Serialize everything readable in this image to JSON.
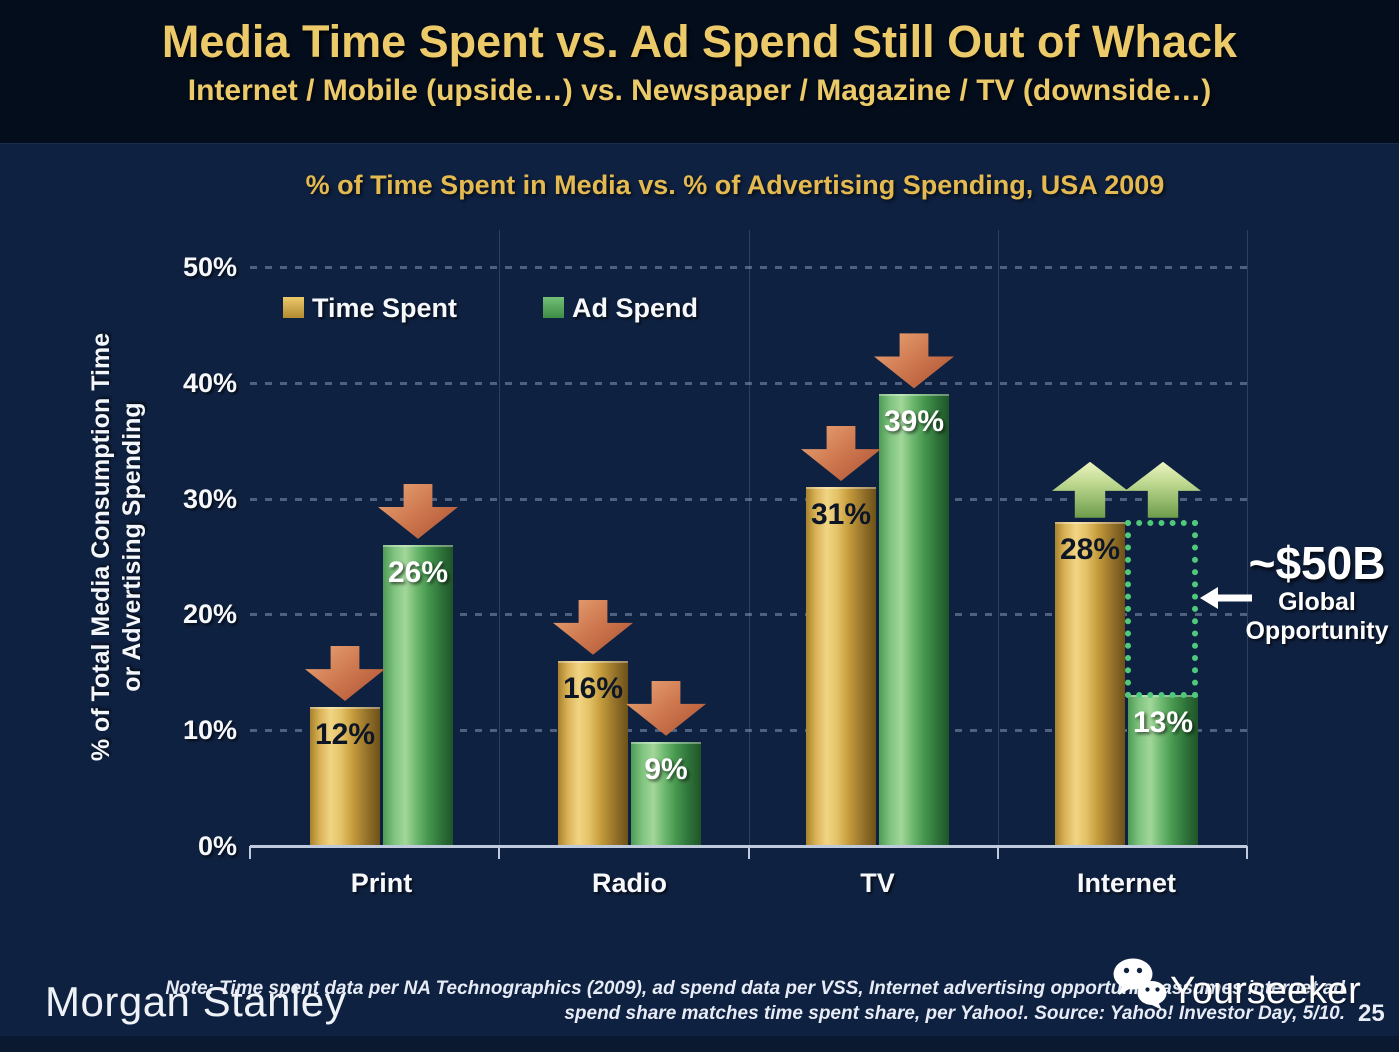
{
  "slide": {
    "title": "Media Time Spent vs. Ad Spend Still Out of Whack",
    "subtitle": "Internet / Mobile (upside…) vs. Newspaper / Magazine / TV (downside…)",
    "page_number": "25"
  },
  "chart_data": {
    "type": "bar",
    "title": "% of Time Spent in Media vs. % of Advertising Spending, USA 2009",
    "categories": [
      "Print",
      "Radio",
      "TV",
      "Internet"
    ],
    "series": [
      {
        "name": "Time Spent",
        "color": "#d9b04c",
        "values": [
          12,
          16,
          31,
          28
        ]
      },
      {
        "name": "Ad Spend",
        "color": "#54a95c",
        "values": [
          26,
          9,
          39,
          13
        ]
      }
    ],
    "value_suffix": "%",
    "trend_arrows": [
      "down",
      "down",
      "down",
      "up"
    ],
    "ylabel_line1": "% of Total Media Consumption Time",
    "ylabel_line2": "or Advertising Spending",
    "ylim": [
      0,
      50
    ],
    "yticks": [
      "0%",
      "10%",
      "20%",
      "30%",
      "40%",
      "50%"
    ],
    "grid": "dotted-horizontal",
    "legend_position": "top-left",
    "annotation": {
      "headline": "~$50B",
      "line1": "Global",
      "line2": "Opportunity"
    }
  },
  "legend": {
    "items": [
      {
        "label": "Time Spent",
        "color": "#d9b04c"
      },
      {
        "label": "Ad Spend",
        "color": "#54a95c"
      }
    ]
  },
  "footer": {
    "brand": "Morgan Stanley",
    "note_line1": "Note: Time spent data per NA Technographics (2009), ad spend data per VSS, Internet advertising opportunity assumes internet ad",
    "note_line2": "spend share matches time spent share, per Yahoo!. Source: Yahoo! Investor Day, 5/10.",
    "watermark": "Yourseeker",
    "watermark_icon": "wechat-icon"
  },
  "colors": {
    "header_background": "#040d1c",
    "slide_background": "#0f2140",
    "title_gold": "#ecca69",
    "bar_gold": "#d9b04c",
    "bar_green": "#54a95c",
    "arrow_down": "#c96f48",
    "arrow_up": "#b9d58b",
    "dotted_box": "#4fca7c",
    "axis": "#bfcbdd"
  }
}
